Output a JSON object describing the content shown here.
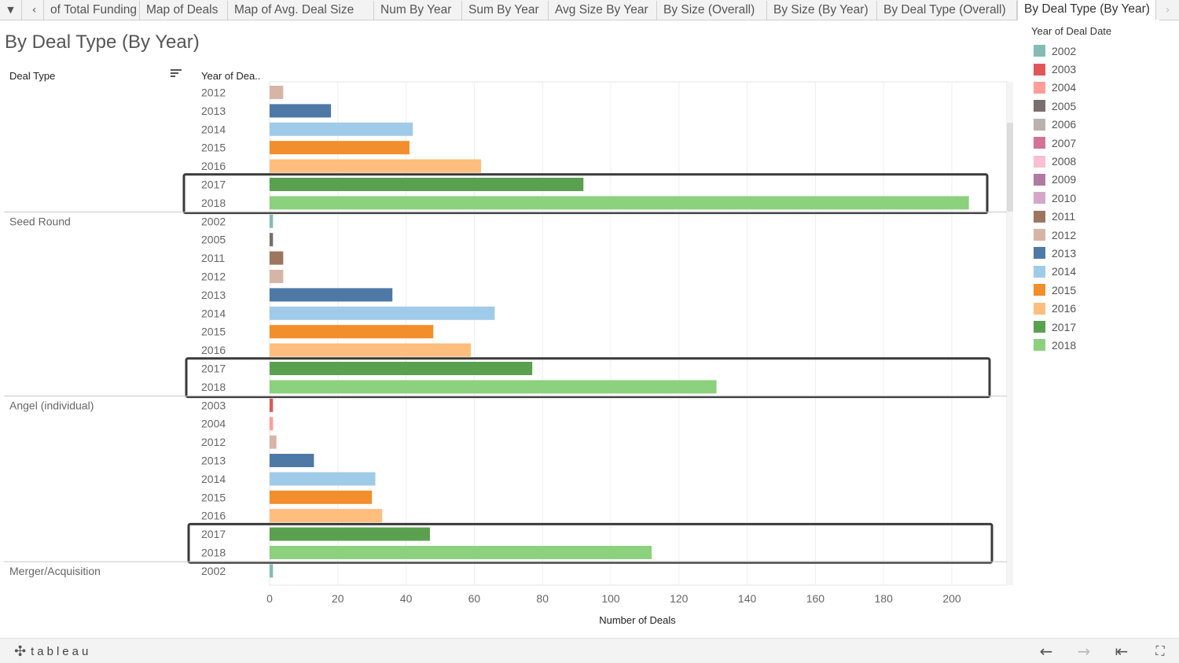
{
  "tabbar": {
    "scroll_left_icon": "chevron-left-icon",
    "scroll_right_icon": "chevron-right-icon",
    "menu_icon": "dropdown-icon",
    "tabs": [
      {
        "label": "of Total Funding",
        "active": false
      },
      {
        "label": "Map of Deals",
        "active": false
      },
      {
        "label": "Map of Avg. Deal Size",
        "active": false
      },
      {
        "label": "Num By Year",
        "active": false
      },
      {
        "label": "Sum By Year",
        "active": false
      },
      {
        "label": "Avg Size By Year",
        "active": false
      },
      {
        "label": "By Size (Overall)",
        "active": false
      },
      {
        "label": "By Size (By Year)",
        "active": false
      },
      {
        "label": "By Deal Type (Overall)",
        "active": false
      },
      {
        "label": "By Deal Type (By Year)",
        "active": true
      }
    ]
  },
  "title": "By Deal Type (By Year)",
  "headers": {
    "deal_type": "Deal Type",
    "year": "Year of Dea.."
  },
  "legend": {
    "title": "Year of Deal Date",
    "items": [
      {
        "label": "2002",
        "color": "#86bcb6"
      },
      {
        "label": "2003",
        "color": "#e15759"
      },
      {
        "label": "2004",
        "color": "#ff9d9a"
      },
      {
        "label": "2005",
        "color": "#79706e"
      },
      {
        "label": "2006",
        "color": "#bab0ac"
      },
      {
        "label": "2007",
        "color": "#d37295"
      },
      {
        "label": "2008",
        "color": "#fabfd2"
      },
      {
        "label": "2009",
        "color": "#b07aa1"
      },
      {
        "label": "2010",
        "color": "#d4a6c8"
      },
      {
        "label": "2011",
        "color": "#9d7660"
      },
      {
        "label": "2012",
        "color": "#d7b5a6"
      },
      {
        "label": "2013",
        "color": "#4e79a7"
      },
      {
        "label": "2014",
        "color": "#a0cbe8"
      },
      {
        "label": "2015",
        "color": "#f28e2b"
      },
      {
        "label": "2016",
        "color": "#ffbe7d"
      },
      {
        "label": "2017",
        "color": "#59a14f"
      },
      {
        "label": "2018",
        "color": "#8cd17d"
      }
    ]
  },
  "chart_data": {
    "type": "bar",
    "orientation": "horizontal",
    "xlabel": "Number of Deals",
    "xlim": [
      0,
      215
    ],
    "x_ticks": [
      0,
      20,
      40,
      60,
      80,
      100,
      120,
      140,
      160,
      180,
      200
    ],
    "groups": [
      {
        "deal_type": "",
        "bars": [
          {
            "year": "2012",
            "value": 4
          },
          {
            "year": "2013",
            "value": 18
          },
          {
            "year": "2014",
            "value": 42
          },
          {
            "year": "2015",
            "value": 41
          },
          {
            "year": "2016",
            "value": 62
          },
          {
            "year": "2017",
            "value": 92
          },
          {
            "year": "2018",
            "value": 205
          }
        ],
        "highlight": [
          "2017",
          "2018"
        ]
      },
      {
        "deal_type": "Seed Round",
        "bars": [
          {
            "year": "2002",
            "value": 1
          },
          {
            "year": "2005",
            "value": 1
          },
          {
            "year": "2011",
            "value": 4
          },
          {
            "year": "2012",
            "value": 4
          },
          {
            "year": "2013",
            "value": 36
          },
          {
            "year": "2014",
            "value": 66
          },
          {
            "year": "2015",
            "value": 48
          },
          {
            "year": "2016",
            "value": 59
          },
          {
            "year": "2017",
            "value": 77
          },
          {
            "year": "2018",
            "value": 131
          }
        ],
        "highlight": [
          "2017",
          "2018"
        ]
      },
      {
        "deal_type": "Angel (individual)",
        "bars": [
          {
            "year": "2003",
            "value": 1
          },
          {
            "year": "2004",
            "value": 1
          },
          {
            "year": "2012",
            "value": 2
          },
          {
            "year": "2013",
            "value": 13
          },
          {
            "year": "2014",
            "value": 31
          },
          {
            "year": "2015",
            "value": 30
          },
          {
            "year": "2016",
            "value": 33
          },
          {
            "year": "2017",
            "value": 47
          },
          {
            "year": "2018",
            "value": 112
          }
        ],
        "highlight": [
          "2017",
          "2018"
        ]
      },
      {
        "deal_type": "Merger/Acquisition",
        "bars": [
          {
            "year": "2002",
            "value": 1
          }
        ],
        "highlight": []
      }
    ]
  },
  "toolbar": {
    "logo_text": "tableau",
    "logo_icon": "tableau-logo-icon",
    "undo_icon": "undo-arrow-icon",
    "redo_icon": "redo-arrow-icon",
    "revert_icon": "revert-icon",
    "fullscreen_icon": "fullscreen-icon"
  }
}
